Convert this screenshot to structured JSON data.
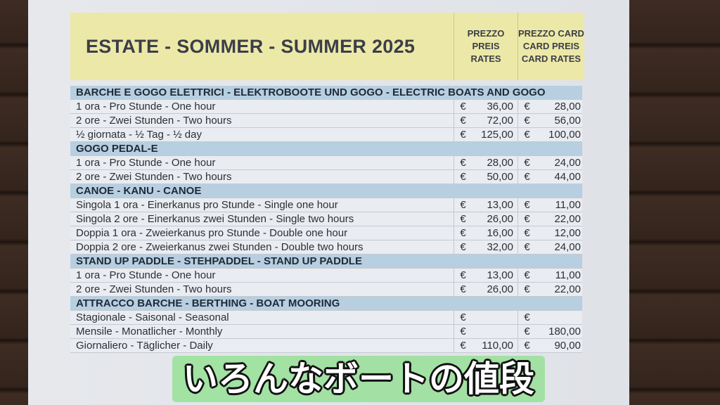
{
  "header": {
    "title": "ESTATE - SOMMER - SUMMER 2025",
    "col1": [
      "PREZZO",
      "PREIS",
      "RATES"
    ],
    "col2": [
      "PREZZO CARD",
      "CARD PREIS",
      "CARD RATES"
    ]
  },
  "rows": [
    {
      "section": "BARCHE E GOGO ELETTRICI - ELEKTROBOOTE UND GOGO - ELECTRIC BOATS AND GOGO"
    },
    {
      "label": "1 ora - Pro Stunde - One hour",
      "price": "36,00",
      "card": "28,00"
    },
    {
      "label": "2 ore - Zwei Stunden - Two hours",
      "price": "72,00",
      "card": "56,00"
    },
    {
      "label": "½ giornata - ½ Tag - ½ day",
      "price": "125,00",
      "card": "100,00"
    },
    {
      "section": "GOGO PEDAL-E"
    },
    {
      "label": "1 ora - Pro Stunde - One hour",
      "price": "28,00",
      "card": "24,00"
    },
    {
      "label": "2 ore - Zwei Stunden - Two hours",
      "price": "50,00",
      "card": "44,00"
    },
    {
      "section": "CANOE - KANU - CANOE"
    },
    {
      "label": "Singola 1 ora - Einerkanus pro Stunde - Single one hour",
      "price": "13,00",
      "card": "11,00"
    },
    {
      "label": "Singola 2 ore - Einerkanus zwei Stunden - Single two hours",
      "price": "26,00",
      "card": "22,00"
    },
    {
      "label": "Doppia 1 ora - Zweierkanus pro Stunde - Double one hour",
      "price": "16,00",
      "card": "12,00"
    },
    {
      "label": "Doppia 2 ore - Zweierkanus zwei Stunden - Double two hours",
      "price": "32,00",
      "card": "24,00"
    },
    {
      "section": "STAND UP PADDLE - STEHPADDEL - STAND UP PADDLE"
    },
    {
      "label": "1 ora - Pro Stunde - One hour",
      "price": "13,00",
      "card": "11,00"
    },
    {
      "label": "2 ore - Zwei Stunden - Two hours",
      "price": "26,00",
      "card": "22,00"
    },
    {
      "section": "ATTRACCO BARCHE - BERTHING - BOAT MOORING"
    },
    {
      "label": "Stagionale - Saisonal - Seasonal",
      "price": "",
      "card": ""
    },
    {
      "label": "Mensile - Monatlicher - Monthly",
      "price": "",
      "card": "180,00"
    },
    {
      "label": "Giornaliero - Täglicher - Daily",
      "price": "110,00",
      "card": "90,00"
    }
  ],
  "currency": "€",
  "subtitle": "いろんなボートの値段"
}
